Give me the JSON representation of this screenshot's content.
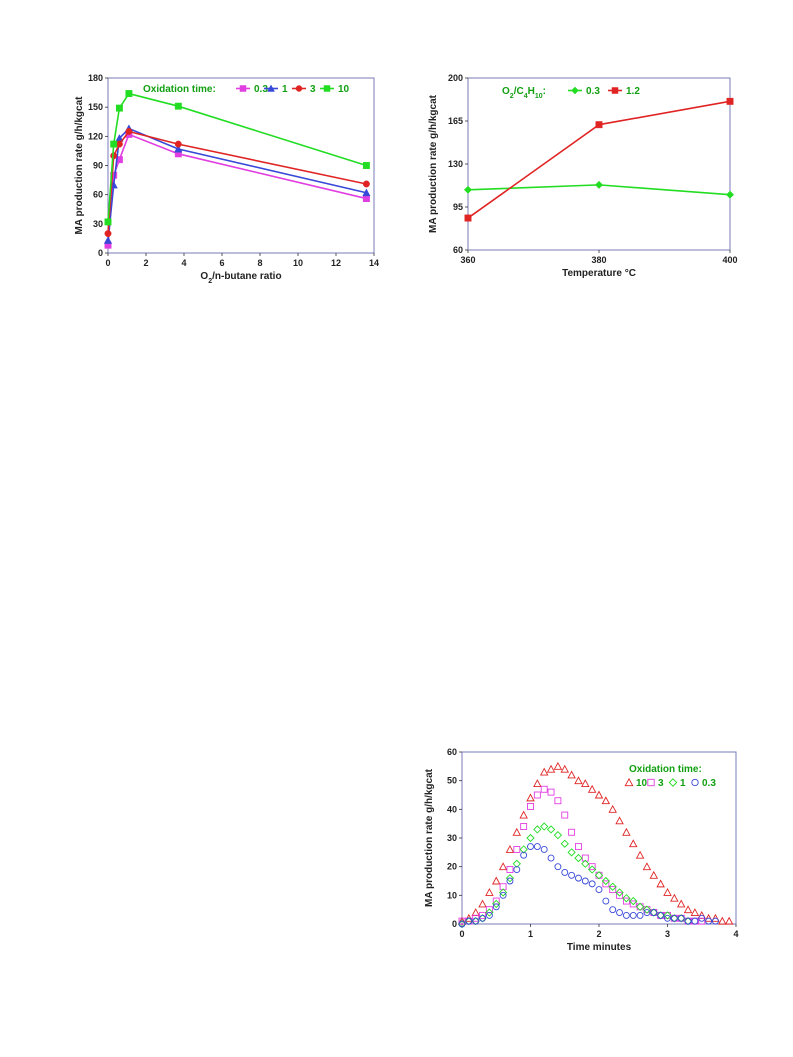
{
  "colors": {
    "pink": "#e13ee1",
    "blue": "#3848d8",
    "red": "#e02424",
    "green": "#22dd22",
    "frame": "#7a7ab8",
    "legend_text": "#12a012"
  },
  "chart_data": [
    {
      "id": "chart1",
      "type": "line",
      "ylabel": "MA production rate g/h/kgcat",
      "xlabel_parts": [
        "O",
        "2",
        "/n-butane ratio"
      ],
      "xlim": [
        0,
        14
      ],
      "ylim": [
        0,
        180
      ],
      "xticks": [
        0,
        2,
        4,
        6,
        8,
        10,
        12,
        14
      ],
      "yticks": [
        0,
        30,
        60,
        90,
        120,
        150,
        180
      ],
      "legend_title": "Oxidation time:",
      "series": [
        {
          "name": "0.3",
          "color": "pink",
          "marker": "square",
          "x": [
            0,
            0.3,
            0.6,
            1.1,
            3.7,
            13.6
          ],
          "y": [
            8,
            80,
            96,
            122,
            102,
            56
          ]
        },
        {
          "name": "1",
          "color": "blue",
          "marker": "triangle",
          "x": [
            0,
            0.3,
            0.6,
            1.1,
            3.7,
            13.6
          ],
          "y": [
            13,
            70,
            118,
            128,
            107,
            62
          ]
        },
        {
          "name": "3",
          "color": "red",
          "marker": "circle",
          "x": [
            0,
            0.3,
            0.6,
            1.1,
            3.7,
            13.6
          ],
          "y": [
            20,
            100,
            112,
            125,
            112,
            71
          ]
        },
        {
          "name": "10",
          "color": "green",
          "marker": "square",
          "x": [
            0,
            0.3,
            0.6,
            1.1,
            3.7,
            13.6
          ],
          "y": [
            32,
            112,
            149,
            164,
            151,
            90
          ]
        }
      ]
    },
    {
      "id": "chart2",
      "type": "line",
      "ylabel": "MA production rate g/h/kgcat",
      "xlabel": "Temperature °C",
      "xlim": [
        360,
        400
      ],
      "ylim": [
        60,
        200
      ],
      "xticks": [
        360,
        380,
        400
      ],
      "yticks": [
        60,
        95,
        130,
        165,
        200
      ],
      "legend_title_parts": [
        "O",
        "2",
        "/C",
        "4",
        "H",
        "10",
        ":"
      ],
      "series": [
        {
          "name": "0.3",
          "color": "green",
          "marker": "diamond",
          "x": [
            360,
            380,
            400
          ],
          "y": [
            109,
            113,
            105
          ]
        },
        {
          "name": "1.2",
          "color": "red",
          "marker": "square",
          "x": [
            360,
            380,
            400
          ],
          "y": [
            86,
            162,
            181
          ]
        }
      ]
    },
    {
      "id": "chart3",
      "type": "scatter",
      "ylabel": "MA production rate g/h/kgcat",
      "xlabel": "Time minutes",
      "xlim": [
        0,
        4
      ],
      "ylim": [
        0,
        60
      ],
      "xticks": [
        0,
        1,
        2,
        3,
        4
      ],
      "yticks": [
        0,
        10,
        20,
        30,
        40,
        50,
        60
      ],
      "legend_title": "Oxidation time:",
      "series": [
        {
          "name": "10",
          "color": "red",
          "marker": "triangle-open",
          "x": [
            0.0,
            0.1,
            0.2,
            0.3,
            0.4,
            0.5,
            0.6,
            0.7,
            0.8,
            0.9,
            1.0,
            1.1,
            1.2,
            1.3,
            1.4,
            1.5,
            1.6,
            1.7,
            1.8,
            1.9,
            2.0,
            2.1,
            2.2,
            2.3,
            2.4,
            2.5,
            2.6,
            2.7,
            2.8,
            2.9,
            3.0,
            3.1,
            3.2,
            3.3,
            3.4,
            3.5,
            3.6,
            3.7,
            3.8,
            3.9
          ],
          "y": [
            1,
            2,
            4,
            7,
            11,
            15,
            20,
            26,
            32,
            38,
            44,
            49,
            53,
            54,
            55,
            54,
            52,
            50,
            49,
            47,
            45,
            43,
            40,
            36,
            32,
            28,
            24,
            20,
            17,
            14,
            11,
            9,
            7,
            5,
            4,
            3,
            2,
            2,
            1,
            1
          ]
        },
        {
          "name": "3",
          "color": "pink",
          "marker": "square-open",
          "x": [
            0.0,
            0.1,
            0.2,
            0.3,
            0.4,
            0.5,
            0.6,
            0.7,
            0.8,
            0.9,
            1.0,
            1.1,
            1.2,
            1.3,
            1.4,
            1.5,
            1.6,
            1.7,
            1.8,
            1.9,
            2.0,
            2.1,
            2.2,
            2.3,
            2.4,
            2.5,
            2.6,
            2.7,
            2.8,
            2.9,
            3.0,
            3.1,
            3.2,
            3.3,
            3.4,
            3.5
          ],
          "y": [
            1,
            1,
            2,
            3,
            5,
            8,
            13,
            19,
            26,
            34,
            41,
            45,
            47,
            46,
            43,
            38,
            32,
            27,
            23,
            20,
            17,
            14,
            12,
            10,
            8,
            7,
            6,
            5,
            4,
            3,
            3,
            2,
            2,
            1,
            1,
            1
          ]
        },
        {
          "name": "1",
          "color": "green",
          "marker": "diamond-open",
          "x": [
            0.0,
            0.1,
            0.2,
            0.3,
            0.4,
            0.5,
            0.6,
            0.7,
            0.8,
            0.9,
            1.0,
            1.1,
            1.2,
            1.3,
            1.4,
            1.5,
            1.6,
            1.7,
            1.8,
            1.9,
            2.0,
            2.1,
            2.2,
            2.3,
            2.4,
            2.5,
            2.6,
            2.7,
            2.8,
            2.9,
            3.0,
            3.1,
            3.2,
            3.3
          ],
          "y": [
            0,
            1,
            1,
            2,
            4,
            7,
            11,
            16,
            21,
            26,
            30,
            33,
            34,
            33,
            31,
            28,
            25,
            23,
            21,
            19,
            17,
            15,
            13,
            11,
            9,
            8,
            6,
            5,
            4,
            3,
            3,
            2,
            2,
            1
          ]
        },
        {
          "name": "0.3",
          "color": "blue",
          "marker": "circle-open",
          "x": [
            0.0,
            0.1,
            0.2,
            0.3,
            0.4,
            0.5,
            0.6,
            0.7,
            0.8,
            0.9,
            1.0,
            1.1,
            1.2,
            1.3,
            1.4,
            1.5,
            1.6,
            1.7,
            1.8,
            1.9,
            2.0,
            2.1,
            2.2,
            2.3,
            2.4,
            2.5,
            2.6,
            2.7,
            2.8,
            2.9,
            3.0,
            3.1,
            3.2,
            3.3,
            3.4,
            3.5,
            3.6,
            3.7
          ],
          "y": [
            0,
            1,
            1,
            2,
            3,
            6,
            10,
            15,
            19,
            24,
            27,
            27,
            26,
            23,
            20,
            18,
            17,
            16,
            15,
            14,
            12,
            8,
            5,
            4,
            3,
            3,
            3,
            4,
            4,
            3,
            2,
            2,
            2,
            1,
            1,
            2,
            1,
            1
          ]
        }
      ]
    }
  ]
}
